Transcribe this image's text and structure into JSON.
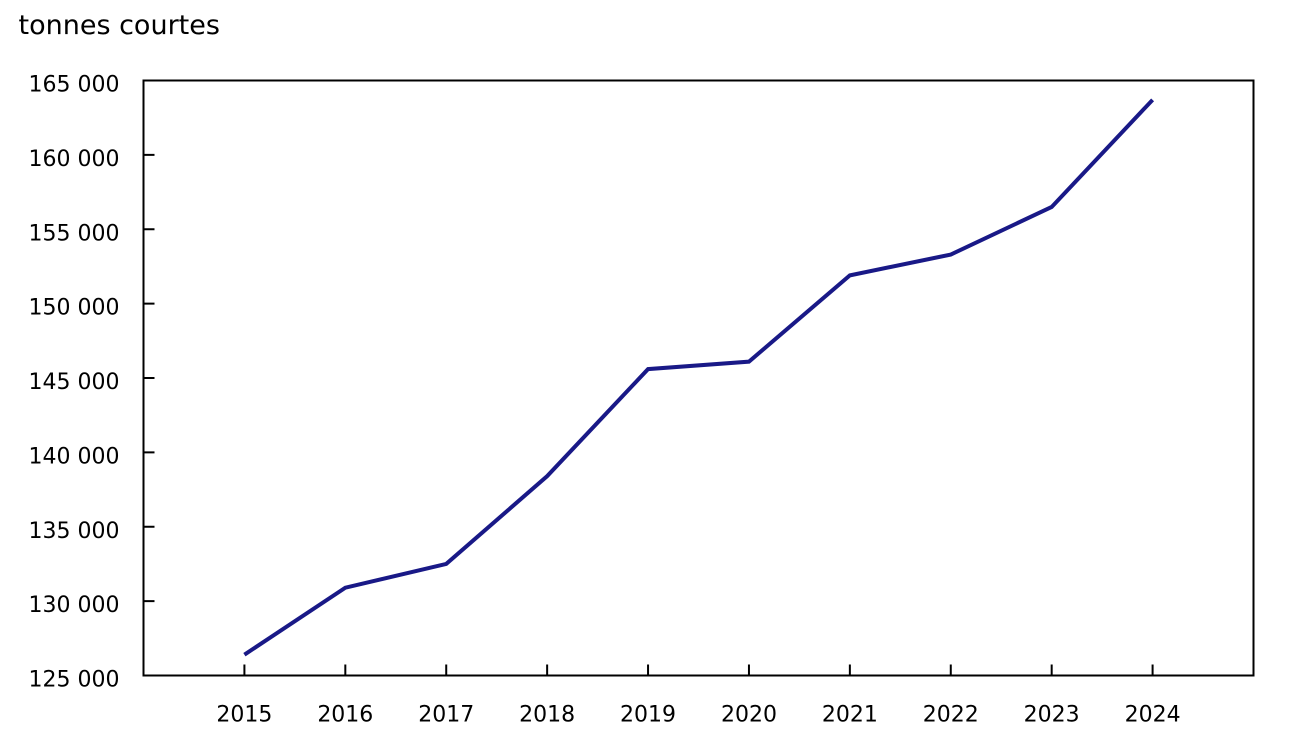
{
  "page": {
    "background_color": "#ffffff"
  },
  "chart_data": {
    "type": "line",
    "title": "",
    "ylabel": "tonnes courtes",
    "xlabel": "",
    "categories": [
      "2015",
      "2016",
      "2017",
      "2018",
      "2019",
      "2020",
      "2021",
      "2022",
      "2023",
      "2024"
    ],
    "series": [
      {
        "name": "tonnes courtes",
        "values": [
          126400,
          130900,
          132500,
          138400,
          145600,
          146100,
          151900,
          153300,
          156500,
          163700
        ]
      }
    ],
    "ylim": [
      125000,
      165000
    ],
    "ytick_step": 5000,
    "ytick_labels": [
      "125 000",
      "130 000",
      "135 000",
      "140 000",
      "145 000",
      "150 000",
      "155 000",
      "160 000",
      "165 000"
    ],
    "xtick_labels": [
      "2015",
      "2016",
      "2017",
      "2018",
      "2019",
      "2020",
      "2021",
      "2022",
      "2023",
      "2024"
    ],
    "grid": false,
    "legend": "none",
    "line_color": "#191987",
    "axis_color": "#000000",
    "text_color": "#000000"
  }
}
